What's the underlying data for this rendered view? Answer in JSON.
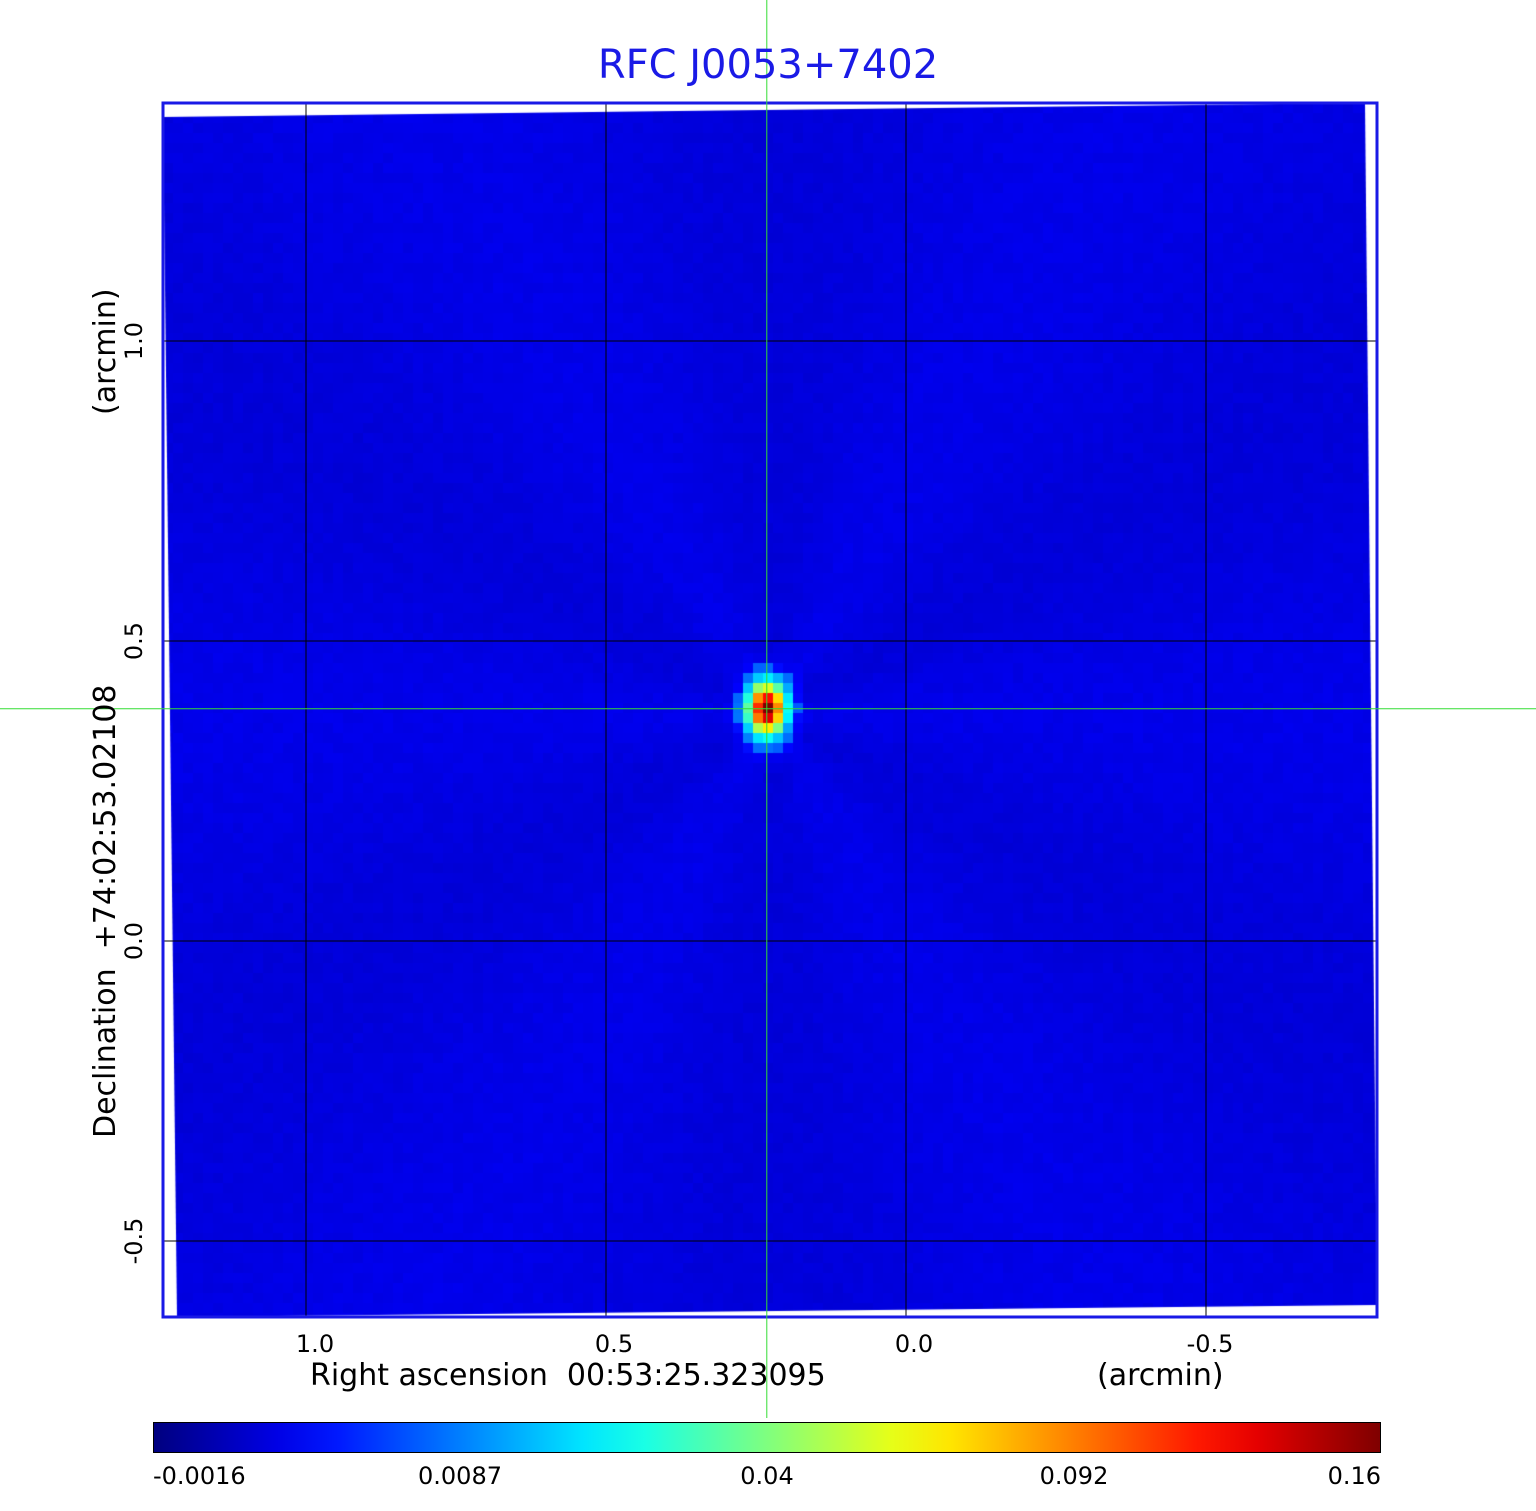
{
  "chart_data": {
    "type": "heatmap",
    "title": "RFC J0053+7402",
    "xlabel": "Right ascension  00:53:25.323095",
    "xunit": "(arcmin)",
    "ylabel": "Declination  +74:02:53.02108",
    "yunit": "(arcmin)",
    "x_ticks": [
      "1.0",
      "0.5",
      "0.0",
      "-0.5"
    ],
    "x_tick_values": [
      1.0,
      0.5,
      0.0,
      -0.5
    ],
    "y_ticks": [
      "1.0",
      "0.5",
      "0.0",
      "-0.5"
    ],
    "y_tick_values": [
      1.0,
      0.5,
      0.0,
      -0.5
    ],
    "xlim": [
      1.24,
      -0.79
    ],
    "ylim": [
      -0.63,
      1.4
    ],
    "grid": true,
    "colormap": "jet",
    "colorbar": {
      "placement": "bottom",
      "tick_labels": [
        "-0.0016",
        "0.0087",
        "0.04",
        "0.092",
        "0.16"
      ],
      "range": [
        -0.0016,
        0.16
      ]
    },
    "source": {
      "x": 0.232,
      "y": 0.387,
      "peak": 0.16
    },
    "crosshair": {
      "x": 0.232,
      "y": 0.387,
      "color": "#33dd33"
    },
    "colors": {
      "title": "#1a1ae6",
      "frame": "#1a1ae6",
      "background": "#1446f5"
    }
  }
}
